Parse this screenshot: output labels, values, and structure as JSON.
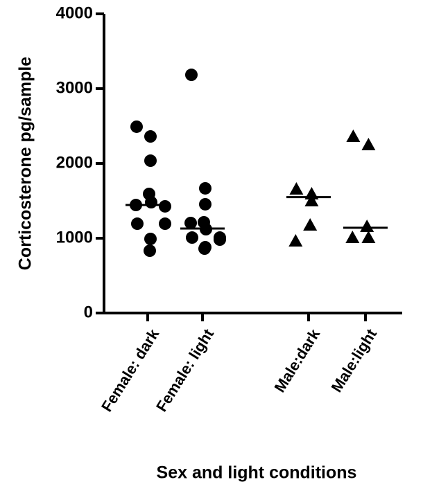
{
  "chart_data": {
    "type": "dot",
    "y_label": "Corticosterone pg/sample",
    "x_label": "Sex and light conditions",
    "categories": [
      "Female: dark",
      "Female: light",
      "Male:dark",
      "Male:light"
    ],
    "markers": [
      "circle",
      "circle",
      "triangle",
      "triangle"
    ],
    "color": "#000000",
    "points": [
      [
        2491,
        2361,
        2037,
        1593,
        1444,
        1481,
        1426,
        1194,
        1194,
        991,
        833
      ],
      [
        3185,
        1667,
        1454,
        1213,
        1204,
        1120,
        1009,
        1009,
        981,
        880,
        861
      ],
      [
        1657,
        1500,
        1593,
        1176,
        963
      ],
      [
        2361,
        2250,
        1009,
        1157,
        1009
      ]
    ],
    "medians": [
      1444,
      1130,
      1550,
      1140
    ],
    "ylim": [
      0,
      4000
    ],
    "yticks": [
      0,
      1000,
      2000,
      3000,
      4000
    ]
  }
}
